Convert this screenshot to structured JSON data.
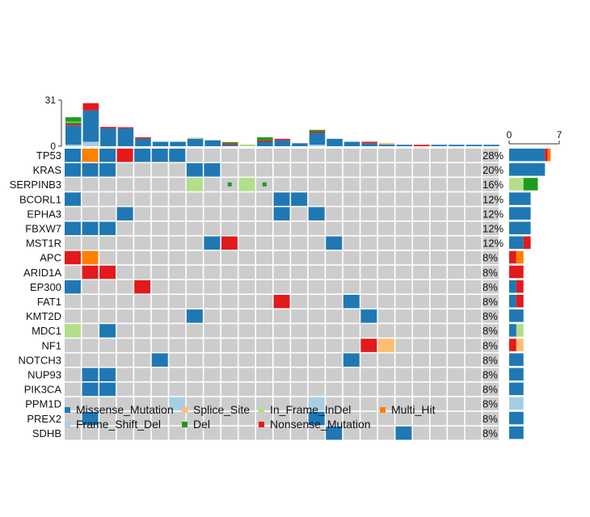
{
  "chart_data": {
    "type": "oncoplot",
    "n_samples": 25,
    "top_axis": {
      "ticks": [
        0,
        31
      ],
      "max": 31
    },
    "right_axis": {
      "ticks": [
        0,
        7
      ],
      "max": 7
    },
    "colors": {
      "Missense_Mutation": "#1F78B4",
      "Frame_Shift_Del": "#A6CEE3",
      "Splice_Site": "#FDBF6F",
      "Del": "#1A9D1A",
      "In_Frame_InDel": "#B2DF8A",
      "Nonsense_Mutation": "#E31A1C",
      "Multi_Hit": "#FF7F00",
      "background": "#CCCCCC"
    },
    "legend": [
      [
        "Missense_Mutation",
        "Splice_Site",
        "In_Frame_InDel",
        "Multi_Hit"
      ],
      [
        "Frame_Shift_Del",
        "Del",
        "Nonsense_Mutation"
      ]
    ],
    "genes": [
      {
        "name": "TP53",
        "pct": "28%",
        "cells": [
          [
            0,
            "Missense_Mutation"
          ],
          [
            1,
            "Multi_Hit"
          ],
          [
            2,
            "Missense_Mutation"
          ],
          [
            3,
            "Nonsense_Mutation"
          ],
          [
            4,
            "Missense_Mutation"
          ],
          [
            5,
            "Missense_Mutation"
          ],
          [
            6,
            "Missense_Mutation"
          ]
        ],
        "counts": [
          [
            "Missense_Mutation",
            5
          ],
          [
            "Nonsense_Mutation",
            0.4
          ],
          [
            "Multi_Hit",
            0.4
          ]
        ]
      },
      {
        "name": "KRAS",
        "pct": "20%",
        "cells": [
          [
            0,
            "Missense_Mutation"
          ],
          [
            1,
            "Missense_Mutation"
          ],
          [
            2,
            "Missense_Mutation"
          ],
          [
            7,
            "Missense_Mutation"
          ],
          [
            8,
            "Missense_Mutation"
          ]
        ],
        "counts": [
          [
            "Missense_Mutation",
            5
          ]
        ]
      },
      {
        "name": "SERPINB3",
        "pct": "16%",
        "cells": [
          [
            7,
            "In_Frame_InDel"
          ],
          [
            9,
            "Del"
          ],
          [
            10,
            "In_Frame_InDel"
          ],
          [
            11,
            "Del"
          ]
        ],
        "small_cells": [
          9,
          11
        ],
        "counts": [
          [
            "In_Frame_InDel",
            2
          ],
          [
            "Del",
            2
          ]
        ]
      },
      {
        "name": "BCORL1",
        "pct": "12%",
        "cells": [
          [
            0,
            "Missense_Mutation"
          ],
          [
            12,
            "Missense_Mutation"
          ],
          [
            13,
            "Missense_Mutation"
          ]
        ],
        "counts": [
          [
            "Missense_Mutation",
            3
          ]
        ]
      },
      {
        "name": "EPHA3",
        "pct": "12%",
        "cells": [
          [
            3,
            "Missense_Mutation"
          ],
          [
            12,
            "Missense_Mutation"
          ],
          [
            14,
            "Missense_Mutation"
          ]
        ],
        "counts": [
          [
            "Missense_Mutation",
            3
          ]
        ]
      },
      {
        "name": "FBXW7",
        "pct": "12%",
        "cells": [
          [
            0,
            "Missense_Mutation"
          ],
          [
            1,
            "Missense_Mutation"
          ],
          [
            2,
            "Missense_Mutation"
          ]
        ],
        "counts": [
          [
            "Missense_Mutation",
            3
          ]
        ]
      },
      {
        "name": "MST1R",
        "pct": "12%",
        "cells": [
          [
            8,
            "Missense_Mutation"
          ],
          [
            9,
            "Nonsense_Mutation"
          ],
          [
            15,
            "Missense_Mutation"
          ]
        ],
        "counts": [
          [
            "Missense_Mutation",
            2
          ],
          [
            "Nonsense_Mutation",
            1
          ]
        ]
      },
      {
        "name": "APC",
        "pct": "8%",
        "cells": [
          [
            0,
            "Nonsense_Mutation"
          ],
          [
            1,
            "Multi_Hit"
          ]
        ],
        "counts": [
          [
            "Nonsense_Mutation",
            1
          ],
          [
            "Multi_Hit",
            1
          ]
        ]
      },
      {
        "name": "ARID1A",
        "pct": "8%",
        "cells": [
          [
            1,
            "Nonsense_Mutation"
          ],
          [
            2,
            "Nonsense_Mutation"
          ]
        ],
        "counts": [
          [
            "Nonsense_Mutation",
            2
          ]
        ]
      },
      {
        "name": "EP300",
        "pct": "8%",
        "cells": [
          [
            0,
            "Missense_Mutation"
          ],
          [
            4,
            "Nonsense_Mutation"
          ]
        ],
        "counts": [
          [
            "Missense_Mutation",
            1
          ],
          [
            "Nonsense_Mutation",
            1
          ]
        ]
      },
      {
        "name": "FAT1",
        "pct": "8%",
        "cells": [
          [
            12,
            "Nonsense_Mutation"
          ],
          [
            16,
            "Missense_Mutation"
          ]
        ],
        "counts": [
          [
            "Missense_Mutation",
            1
          ],
          [
            "Nonsense_Mutation",
            1
          ]
        ]
      },
      {
        "name": "KMT2D",
        "pct": "8%",
        "cells": [
          [
            7,
            "Missense_Mutation"
          ],
          [
            17,
            "Missense_Mutation"
          ]
        ],
        "counts": [
          [
            "Missense_Mutation",
            2
          ]
        ]
      },
      {
        "name": "MDC1",
        "pct": "8%",
        "cells": [
          [
            0,
            "In_Frame_InDel"
          ],
          [
            2,
            "Missense_Mutation"
          ]
        ],
        "counts": [
          [
            "Missense_Mutation",
            1
          ],
          [
            "In_Frame_InDel",
            1
          ]
        ]
      },
      {
        "name": "NF1",
        "pct": "8%",
        "cells": [
          [
            17,
            "Nonsense_Mutation"
          ],
          [
            18,
            "Splice_Site"
          ]
        ],
        "counts": [
          [
            "Nonsense_Mutation",
            1
          ],
          [
            "Splice_Site",
            1
          ]
        ]
      },
      {
        "name": "NOTCH3",
        "pct": "8%",
        "cells": [
          [
            5,
            "Missense_Mutation"
          ],
          [
            16,
            "Missense_Mutation"
          ]
        ],
        "counts": [
          [
            "Missense_Mutation",
            2
          ]
        ]
      },
      {
        "name": "NUP93",
        "pct": "8%",
        "cells": [
          [
            1,
            "Missense_Mutation"
          ],
          [
            2,
            "Missense_Mutation"
          ]
        ],
        "counts": [
          [
            "Missense_Mutation",
            2
          ]
        ]
      },
      {
        "name": "PIK3CA",
        "pct": "8%",
        "cells": [
          [
            1,
            "Missense_Mutation"
          ],
          [
            2,
            "Missense_Mutation"
          ]
        ],
        "counts": [
          [
            "Missense_Mutation",
            2
          ]
        ]
      },
      {
        "name": "PPM1D",
        "pct": "8%",
        "cells": [
          [
            6,
            "Frame_Shift_Del"
          ],
          [
            14,
            "Frame_Shift_Del"
          ]
        ],
        "counts": [
          [
            "Frame_Shift_Del",
            2
          ]
        ]
      },
      {
        "name": "PREX2",
        "pct": "8%",
        "cells": [
          [
            1,
            "Missense_Mutation"
          ],
          [
            14,
            "Missense_Mutation"
          ]
        ],
        "counts": [
          [
            "Missense_Mutation",
            2
          ]
        ]
      },
      {
        "name": "SDHB",
        "pct": "8%",
        "cells": [
          [
            15,
            "Missense_Mutation"
          ],
          [
            19,
            "Missense_Mutation"
          ]
        ],
        "counts": [
          [
            "Missense_Mutation",
            2
          ]
        ]
      }
    ],
    "tmb": [
      [
        [
          "Frame_Shift_Del",
          1
        ],
        [
          "Missense_Mutation",
          13
        ],
        [
          "Nonsense_Mutation",
          1
        ],
        [
          "Del",
          1
        ],
        [
          "In_Frame_InDel",
          0.5
        ],
        [
          "Del",
          3
        ]
      ],
      [
        [
          "Frame_Shift_Del",
          3
        ],
        [
          "Missense_Mutation",
          21
        ],
        [
          "Nonsense_Mutation",
          5
        ]
      ],
      [
        [
          "Missense_Mutation",
          12
        ],
        [
          "Nonsense_Mutation",
          1
        ]
      ],
      [
        [
          "Missense_Mutation",
          12
        ],
        [
          "Nonsense_Mutation",
          0.8
        ]
      ],
      [
        [
          "Missense_Mutation",
          5
        ],
        [
          "Nonsense_Mutation",
          1
        ]
      ],
      [
        [
          "Missense_Mutation",
          3
        ]
      ],
      [
        [
          "Missense_Mutation",
          3
        ]
      ],
      [
        [
          "Missense_Mutation",
          5
        ],
        [
          "In_Frame_InDel",
          0.8
        ]
      ],
      [
        [
          "Missense_Mutation",
          4
        ]
      ],
      [
        [
          "Missense_Mutation",
          1
        ],
        [
          "Nonsense_Mutation",
          1
        ],
        [
          "Del",
          0.8
        ]
      ],
      [
        [
          "In_Frame_InDel",
          1.2
        ]
      ],
      [
        [
          "Missense_Mutation",
          3
        ],
        [
          "Nonsense_Mutation",
          1
        ],
        [
          "Del",
          2
        ]
      ],
      [
        [
          "Missense_Mutation",
          4
        ],
        [
          "Nonsense_Mutation",
          1
        ]
      ],
      [
        [
          "Missense_Mutation",
          2
        ]
      ],
      [
        [
          "Frame_Shift_Del",
          1
        ],
        [
          "Missense_Mutation",
          8
        ],
        [
          "Nonsense_Mutation",
          1
        ],
        [
          "Del",
          1
        ]
      ],
      [
        [
          "Missense_Mutation",
          5
        ]
      ],
      [
        [
          "Missense_Mutation",
          3
        ]
      ],
      [
        [
          "Missense_Mutation",
          2
        ],
        [
          "Nonsense_Mutation",
          1
        ]
      ],
      [
        [
          "Missense_Mutation",
          1.2
        ],
        [
          "Splice_Site",
          1
        ]
      ],
      [
        [
          "Missense_Mutation",
          1
        ]
      ],
      [
        [
          "Nonsense_Mutation",
          1
        ]
      ],
      [
        [
          "Missense_Mutation",
          1
        ]
      ],
      [
        [
          "Missense_Mutation",
          1
        ]
      ],
      [
        [
          "Missense_Mutation",
          1
        ]
      ],
      [
        [
          "Missense_Mutation",
          1
        ]
      ]
    ]
  }
}
